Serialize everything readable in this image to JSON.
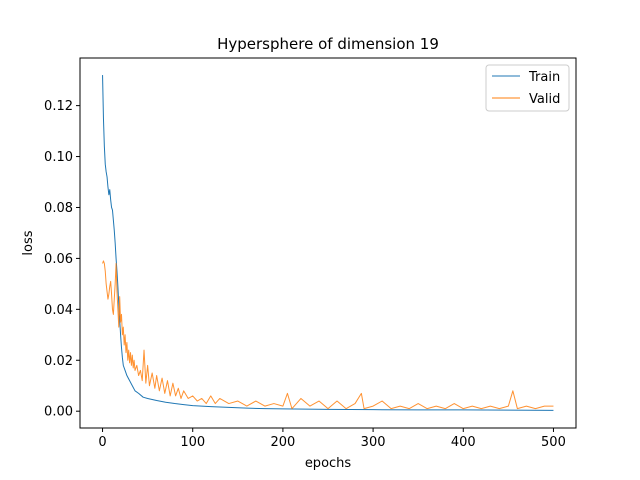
{
  "chart_data": {
    "type": "line",
    "title": "Hypersphere of dimension 19",
    "xlabel": "epochs",
    "ylabel": "loss",
    "xlim": [
      -25,
      525
    ],
    "ylim": [
      -0.0066,
      0.1387
    ],
    "xticks": [
      0,
      100,
      200,
      300,
      400,
      500
    ],
    "yticks": [
      0.0,
      0.02,
      0.04,
      0.06,
      0.08,
      0.1,
      0.12
    ],
    "xtick_labels": [
      "0",
      "100",
      "200",
      "300",
      "400",
      "500"
    ],
    "ytick_labels": [
      "0.00",
      "0.02",
      "0.04",
      "0.06",
      "0.08",
      "0.10",
      "0.12"
    ],
    "grid": false,
    "legend_position": "top-right",
    "series": [
      {
        "name": "Train",
        "color": "#1f77b4",
        "points": [
          [
            0,
            0.132
          ],
          [
            1,
            0.115
          ],
          [
            2,
            0.104
          ],
          [
            3,
            0.097
          ],
          [
            4,
            0.094
          ],
          [
            5,
            0.092
          ],
          [
            6,
            0.088
          ],
          [
            7,
            0.085
          ],
          [
            8,
            0.087
          ],
          [
            9,
            0.083
          ],
          [
            10,
            0.08
          ],
          [
            11,
            0.079
          ],
          [
            12,
            0.075
          ],
          [
            13,
            0.071
          ],
          [
            14,
            0.066
          ],
          [
            15,
            0.06
          ],
          [
            16,
            0.055
          ],
          [
            17,
            0.049
          ],
          [
            18,
            0.042
          ],
          [
            19,
            0.036
          ],
          [
            20,
            0.03
          ],
          [
            21,
            0.025
          ],
          [
            22,
            0.021
          ],
          [
            23,
            0.018
          ],
          [
            25,
            0.016
          ],
          [
            27,
            0.014
          ],
          [
            30,
            0.012
          ],
          [
            33,
            0.01
          ],
          [
            36,
            0.008
          ],
          [
            40,
            0.007
          ],
          [
            45,
            0.0055
          ],
          [
            50,
            0.005
          ],
          [
            60,
            0.0042
          ],
          [
            70,
            0.0035
          ],
          [
            80,
            0.003
          ],
          [
            90,
            0.0026
          ],
          [
            100,
            0.0022
          ],
          [
            120,
            0.0018
          ],
          [
            140,
            0.0015
          ],
          [
            160,
            0.0012
          ],
          [
            180,
            0.001
          ],
          [
            200,
            0.0009
          ],
          [
            250,
            0.0007
          ],
          [
            300,
            0.0006
          ],
          [
            350,
            0.0005
          ],
          [
            400,
            0.0005
          ],
          [
            450,
            0.0004
          ],
          [
            500,
            0.0003
          ]
        ]
      },
      {
        "name": "Valid",
        "color": "#ff7f0e",
        "points": [
          [
            0,
            0.058
          ],
          [
            1,
            0.059
          ],
          [
            2,
            0.058
          ],
          [
            3,
            0.055
          ],
          [
            4,
            0.05
          ],
          [
            5,
            0.047
          ],
          [
            6,
            0.044
          ],
          [
            7,
            0.046
          ],
          [
            8,
            0.049
          ],
          [
            9,
            0.051
          ],
          [
            10,
            0.046
          ],
          [
            11,
            0.04
          ],
          [
            12,
            0.038
          ],
          [
            13,
            0.044
          ],
          [
            14,
            0.05
          ],
          [
            15,
            0.058
          ],
          [
            16,
            0.047
          ],
          [
            17,
            0.04
          ],
          [
            18,
            0.033
          ],
          [
            19,
            0.045
          ],
          [
            20,
            0.035
          ],
          [
            21,
            0.038
          ],
          [
            22,
            0.03
          ],
          [
            23,
            0.033
          ],
          [
            24,
            0.026
          ],
          [
            25,
            0.03
          ],
          [
            26,
            0.023
          ],
          [
            27,
            0.027
          ],
          [
            28,
            0.02
          ],
          [
            29,
            0.024
          ],
          [
            30,
            0.019
          ],
          [
            31,
            0.023
          ],
          [
            32,
            0.018
          ],
          [
            33,
            0.022
          ],
          [
            34,
            0.017
          ],
          [
            35,
            0.02
          ],
          [
            36,
            0.016
          ],
          [
            38,
            0.018
          ],
          [
            40,
            0.014
          ],
          [
            42,
            0.016
          ],
          [
            44,
            0.012
          ],
          [
            46,
            0.024
          ],
          [
            48,
            0.011
          ],
          [
            50,
            0.018
          ],
          [
            52,
            0.01
          ],
          [
            55,
            0.015
          ],
          [
            58,
            0.009
          ],
          [
            60,
            0.014
          ],
          [
            63,
            0.008
          ],
          [
            66,
            0.013
          ],
          [
            69,
            0.007
          ],
          [
            72,
            0.012
          ],
          [
            75,
            0.006
          ],
          [
            78,
            0.011
          ],
          [
            81,
            0.006
          ],
          [
            84,
            0.009
          ],
          [
            87,
            0.005
          ],
          [
            90,
            0.008
          ],
          [
            95,
            0.005
          ],
          [
            100,
            0.006
          ],
          [
            105,
            0.004
          ],
          [
            110,
            0.005
          ],
          [
            115,
            0.003
          ],
          [
            120,
            0.006
          ],
          [
            125,
            0.003
          ],
          [
            130,
            0.005
          ],
          [
            140,
            0.003
          ],
          [
            150,
            0.004
          ],
          [
            160,
            0.002
          ],
          [
            170,
            0.004
          ],
          [
            180,
            0.002
          ],
          [
            190,
            0.003
          ],
          [
            200,
            0.002
          ],
          [
            205,
            0.007
          ],
          [
            210,
            0.001
          ],
          [
            220,
            0.005
          ],
          [
            230,
            0.002
          ],
          [
            240,
            0.004
          ],
          [
            250,
            0.001
          ],
          [
            260,
            0.004
          ],
          [
            270,
            0.001
          ],
          [
            280,
            0.003
          ],
          [
            287,
            0.007
          ],
          [
            290,
            0.001
          ],
          [
            300,
            0.002
          ],
          [
            310,
            0.004
          ],
          [
            320,
            0.001
          ],
          [
            330,
            0.002
          ],
          [
            340,
            0.001
          ],
          [
            350,
            0.003
          ],
          [
            360,
            0.001
          ],
          [
            370,
            0.002
          ],
          [
            380,
            0.001
          ],
          [
            390,
            0.003
          ],
          [
            400,
            0.001
          ],
          [
            410,
            0.002
          ],
          [
            420,
            0.001
          ],
          [
            430,
            0.002
          ],
          [
            440,
            0.001
          ],
          [
            450,
            0.002
          ],
          [
            455,
            0.008
          ],
          [
            460,
            0.001
          ],
          [
            470,
            0.002
          ],
          [
            480,
            0.001
          ],
          [
            490,
            0.002
          ],
          [
            500,
            0.002
          ]
        ]
      }
    ]
  }
}
